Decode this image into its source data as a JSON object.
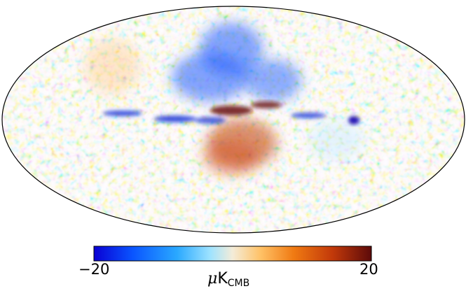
{
  "map": {
    "projection": "mollweide",
    "colormap": [
      "#0a00d4",
      "#0a55ff",
      "#2aa9ff",
      "#9fe3ff",
      "#f4ecd8",
      "#ffc267",
      "#f07a12",
      "#c2390a",
      "#5c0a0a"
    ]
  },
  "colorbar": {
    "min_label": "−20",
    "max_label": "20",
    "unit_mu": "μ",
    "unit_k": "K",
    "unit_sub": "CMB"
  }
}
